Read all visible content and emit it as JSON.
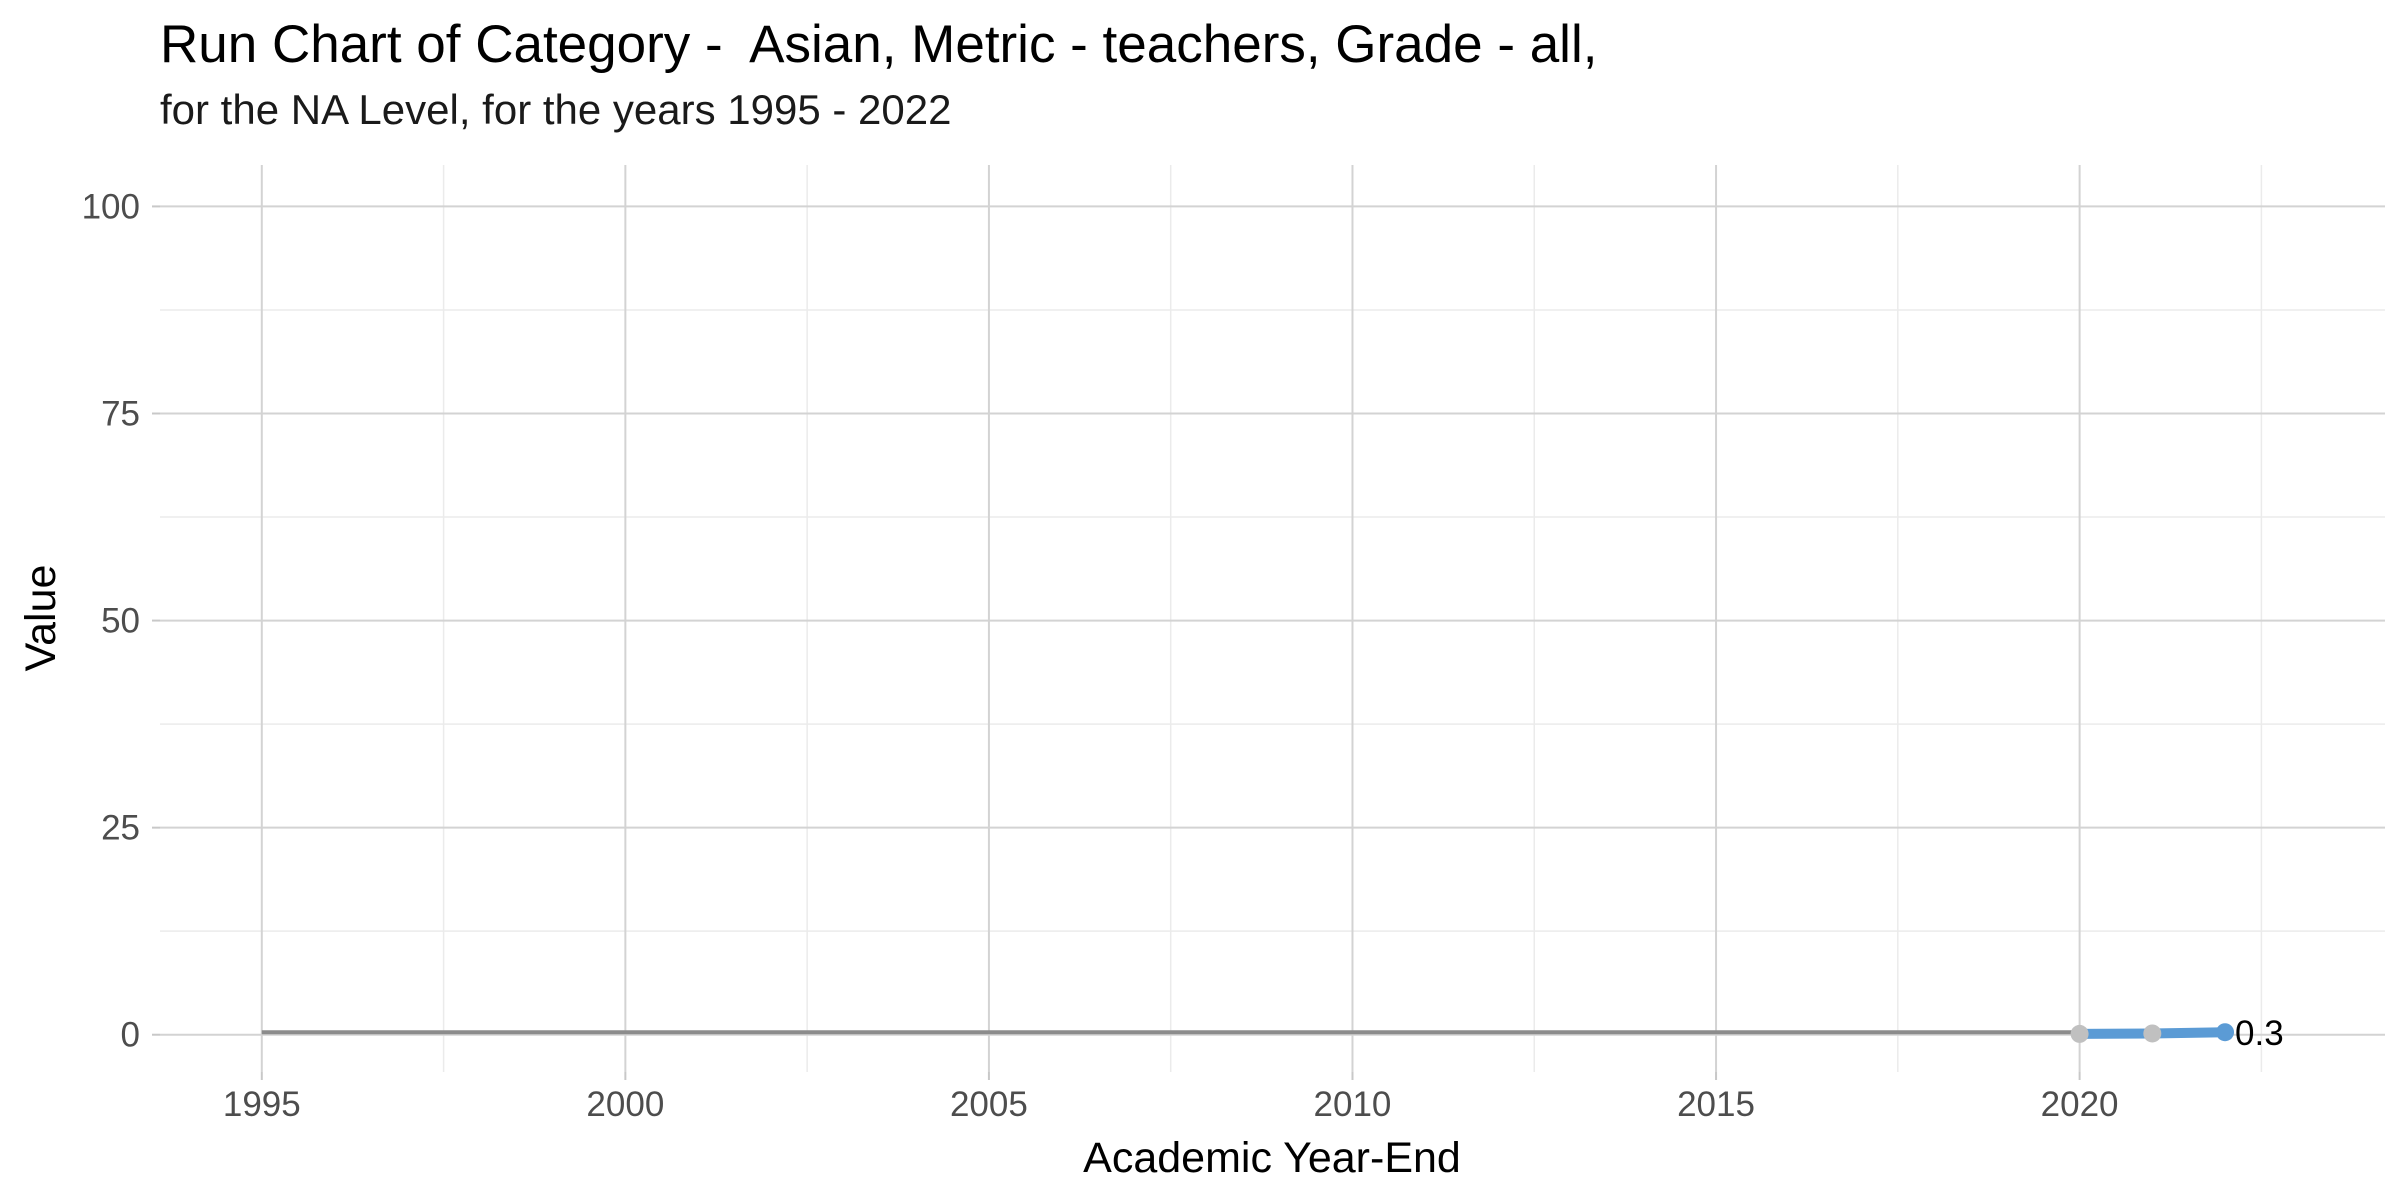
{
  "chart_data": {
    "type": "line",
    "title": "Run Chart of Category -  Asian, Metric - teachers, Grade - all,",
    "subtitle": "for the NA Level, for the years 1995 - 2022",
    "xlabel": "Academic Year-End",
    "ylabel": "Value",
    "xlim": [
      1993.6,
      2024.2
    ],
    "ylim": [
      -4.5,
      105
    ],
    "x_ticks": [
      1995,
      2000,
      2005,
      2010,
      2015,
      2020
    ],
    "y_ticks": [
      0,
      25,
      50,
      75,
      100
    ],
    "grid": true,
    "baseline": {
      "x": [
        1995,
        2020
      ],
      "y": 0.3,
      "color": "#8c8c8c"
    },
    "series": [
      {
        "x": [
          2020,
          2021,
          2022
        ],
        "y": [
          0.1,
          0.15,
          0.3
        ],
        "line_color": "#5b9bd5",
        "point_colors": [
          "#c0c0c0",
          "#c0c0c0",
          "#5b9bd5"
        ]
      }
    ],
    "annotations": [
      {
        "x": 2022,
        "y": 0.3,
        "text": "0.3"
      }
    ]
  }
}
